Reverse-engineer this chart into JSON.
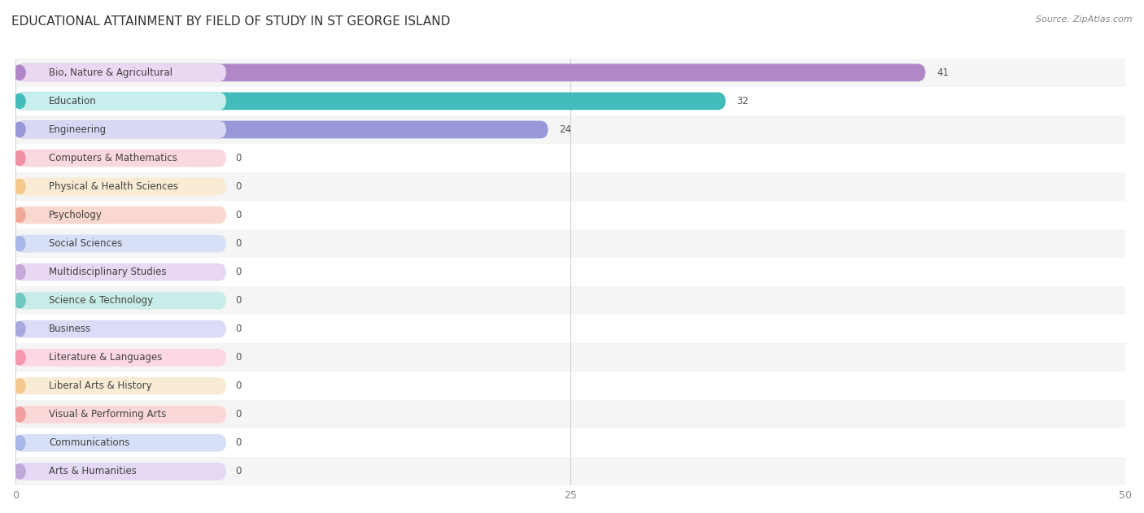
{
  "title": "EDUCATIONAL ATTAINMENT BY FIELD OF STUDY IN ST GEORGE ISLAND",
  "source": "Source: ZipAtlas.com",
  "categories": [
    "Bio, Nature & Agricultural",
    "Education",
    "Engineering",
    "Computers & Mathematics",
    "Physical & Health Sciences",
    "Psychology",
    "Social Sciences",
    "Multidisciplinary Studies",
    "Science & Technology",
    "Business",
    "Literature & Languages",
    "Liberal Arts & History",
    "Visual & Performing Arts",
    "Communications",
    "Arts & Humanities"
  ],
  "values": [
    41,
    32,
    24,
    0,
    0,
    0,
    0,
    0,
    0,
    0,
    0,
    0,
    0,
    0,
    0
  ],
  "bar_colors": [
    "#b088c8",
    "#45bcbc",
    "#9898d8",
    "#f090a4",
    "#f5c98a",
    "#f0a898",
    "#a8b8e8",
    "#c8a8d8",
    "#70c8c0",
    "#a8a8e0",
    "#f898b0",
    "#f5c890",
    "#f0a0a0",
    "#a8b8e8",
    "#c0a8d8"
  ],
  "label_bg_colors": [
    "#ead8f2",
    "#c8eeee",
    "#d8d8f4",
    "#fad8e0",
    "#faecd4",
    "#fad8d0",
    "#d8e0f8",
    "#e8d8f4",
    "#c8ede8",
    "#dcdcf8",
    "#fcd8e4",
    "#faecd4",
    "#fad8d8",
    "#d8e0f8",
    "#e4d8f4"
  ],
  "xlim": [
    0,
    50
  ],
  "xticks": [
    0,
    25,
    50
  ],
  "bg_color": "#ffffff",
  "row_bg_even": "#f5f5f5",
  "row_bg_odd": "#ffffff",
  "title_fontsize": 11,
  "label_fontsize": 8.5,
  "value_fontsize": 8.5
}
